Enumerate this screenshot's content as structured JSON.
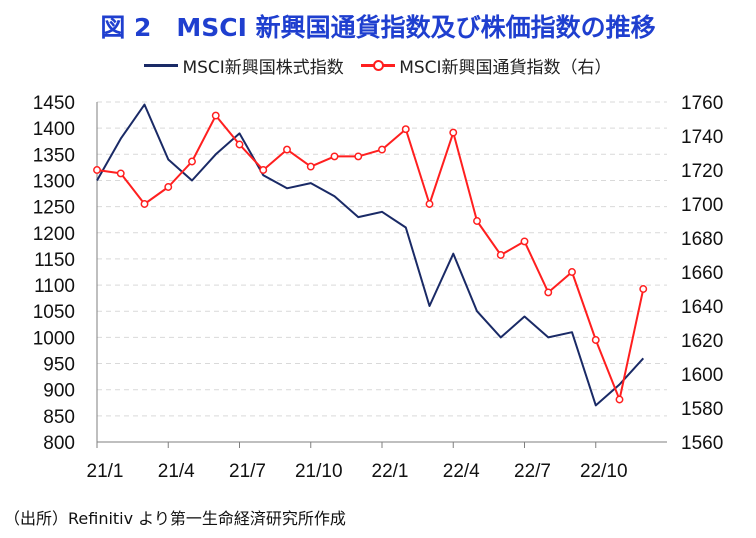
{
  "title": "図 2　MSCI 新興国通貨指数及び株価指数の推移",
  "source": "（出所）Refinitiv より第一生命経済研究所作成",
  "colors": {
    "title": "#1f3fcf",
    "stock": "#1a2a66",
    "currency": "#ff1f1f",
    "grid": "#d9d9d9"
  },
  "chart_data": {
    "type": "line",
    "title": "図 2　MSCI 新興国通貨指数及び株価指数の推移",
    "x_tick_labels": [
      "21/1",
      "21/4",
      "21/7",
      "21/10",
      "22/1",
      "22/4",
      "22/7",
      "22/10"
    ],
    "x_range": [
      "2021-01",
      "2022-12"
    ],
    "y_left": {
      "ylim": [
        800,
        1450
      ],
      "ticks": [
        800,
        850,
        900,
        950,
        1000,
        1050,
        1100,
        1150,
        1200,
        1250,
        1300,
        1350,
        1400,
        1450
      ]
    },
    "y_right": {
      "ylim": [
        1560,
        1760
      ],
      "ticks": [
        1560,
        1580,
        1600,
        1620,
        1640,
        1660,
        1680,
        1700,
        1720,
        1740,
        1760
      ]
    },
    "grid": "horizontal dashed",
    "legend_position": "top",
    "series": [
      {
        "name": "MSCI新興国株式指数",
        "axis": "left",
        "style": "line",
        "color": "#1a2a66",
        "x": [
          "2021-01",
          "2021-02",
          "2021-03",
          "2021-04",
          "2021-05",
          "2021-06",
          "2021-07",
          "2021-08",
          "2021-09",
          "2021-10",
          "2021-11",
          "2021-12",
          "2022-01",
          "2022-02",
          "2022-03",
          "2022-04",
          "2022-05",
          "2022-06",
          "2022-07",
          "2022-08",
          "2022-09",
          "2022-10",
          "2022-11",
          "2022-12"
        ],
        "values": [
          1300,
          1380,
          1445,
          1340,
          1300,
          1350,
          1390,
          1310,
          1285,
          1295,
          1270,
          1230,
          1240,
          1210,
          1060,
          1160,
          1050,
          1000,
          1040,
          1000,
          1010,
          870,
          910,
          960
        ]
      },
      {
        "name": "MSCI新興国通貨指数（右）",
        "axis": "right",
        "style": "line-with-markers",
        "color": "#ff1f1f",
        "x": [
          "2021-01",
          "2021-02",
          "2021-03",
          "2021-04",
          "2021-05",
          "2021-06",
          "2021-07",
          "2021-08",
          "2021-09",
          "2021-10",
          "2021-11",
          "2021-12",
          "2022-01",
          "2022-02",
          "2022-03",
          "2022-04",
          "2022-05",
          "2022-06",
          "2022-07",
          "2022-08",
          "2022-09",
          "2022-10",
          "2022-11",
          "2022-12"
        ],
        "values": [
          1720,
          1718,
          1700,
          1710,
          1725,
          1752,
          1735,
          1720,
          1732,
          1722,
          1728,
          1728,
          1732,
          1744,
          1700,
          1742,
          1690,
          1670,
          1678,
          1648,
          1660,
          1620,
          1585,
          1650
        ]
      }
    ]
  }
}
